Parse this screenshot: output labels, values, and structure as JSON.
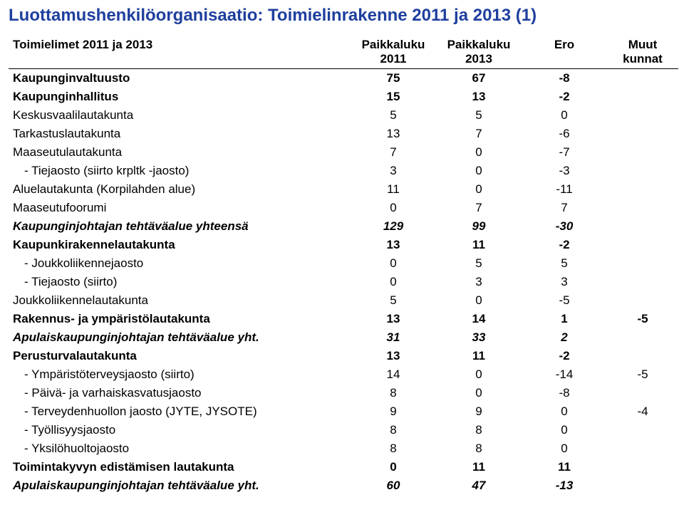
{
  "title": "Luottamushenkilöorganisaatio: Toimielinrakenne 2011 ja 2013 (1)",
  "columns": {
    "name": "Toimielimet 2011 ja 2013",
    "c1_l1": "Paikkaluku",
    "c1_l2": "2011",
    "c2_l1": "Paikkaluku",
    "c2_l2": "2013",
    "c3_l1": "Ero",
    "c4_l1": "Muut",
    "c4_l2": "kunnat"
  },
  "rows": [
    {
      "name": "Kaupunginvaltuusto",
      "v": [
        "75",
        "67",
        "-8",
        ""
      ],
      "style": "bold"
    },
    {
      "name": "Kaupunginhallitus",
      "v": [
        "15",
        "13",
        "-2",
        ""
      ],
      "style": "bold"
    },
    {
      "name": "Keskusvaalilautakunta",
      "v": [
        "5",
        "5",
        "0",
        ""
      ]
    },
    {
      "name": "Tarkastuslautakunta",
      "v": [
        "13",
        "7",
        "-6",
        ""
      ]
    },
    {
      "name": "Maaseutulautakunta",
      "v": [
        "7",
        "0",
        "-7",
        ""
      ]
    },
    {
      "name": "-   Tiejaosto (siirto krpltk -jaosto)",
      "v": [
        "3",
        "0",
        "-3",
        ""
      ],
      "indent": true
    },
    {
      "name": "Aluelautakunta (Korpilahden alue)",
      "v": [
        "11",
        "0",
        "-11",
        ""
      ]
    },
    {
      "name": "Maaseutufoorumi",
      "v": [
        "0",
        "7",
        "7",
        ""
      ]
    },
    {
      "name": "Kaupunginjohtajan tehtäväalue yhteensä",
      "v": [
        "129",
        "99",
        "-30",
        ""
      ],
      "style": "bold-italic"
    },
    {
      "name": "Kaupunkirakennelautakunta",
      "v": [
        "13",
        "11",
        "-2",
        ""
      ],
      "style": "bold"
    },
    {
      "name": "-   Joukkoliikennejaosto",
      "v": [
        "0",
        "5",
        "5",
        ""
      ],
      "indent": true
    },
    {
      "name": "-   Tiejaosto (siirto)",
      "v": [
        "0",
        "3",
        "3",
        ""
      ],
      "indent": true
    },
    {
      "name": "Joukkoliikennelautakunta",
      "v": [
        "5",
        "0",
        "-5",
        ""
      ]
    },
    {
      "name": "Rakennus- ja ympäristölautakunta",
      "v": [
        "13",
        "14",
        "1",
        "-5"
      ],
      "style": "bold"
    },
    {
      "name": "Apulaiskaupunginjohtajan tehtäväalue yht.",
      "v": [
        "31",
        "33",
        "2",
        ""
      ],
      "style": "bold-italic"
    },
    {
      "name": "Perusturvalautakunta",
      "v": [
        "13",
        "11",
        "-2",
        ""
      ],
      "style": "bold"
    },
    {
      "name": "-   Ympäristöterveysjaosto (siirto)",
      "v": [
        "14",
        "0",
        "-14",
        "-5"
      ],
      "indent": true
    },
    {
      "name": "-   Päivä- ja varhaiskasvatusjaosto",
      "v": [
        "8",
        "0",
        "-8",
        ""
      ],
      "indent": true
    },
    {
      "name": "-   Terveydenhuollon jaosto (JYTE, JYSOTE)",
      "v": [
        "9",
        "9",
        "0",
        "-4"
      ],
      "indent": true
    },
    {
      "name": "-   Työllisyysjaosto",
      "v": [
        "8",
        "8",
        "0",
        ""
      ],
      "indent": true
    },
    {
      "name": "-   Yksilöhuoltojaosto",
      "v": [
        "8",
        "8",
        "0",
        ""
      ],
      "indent": true
    },
    {
      "name": "Toimintakyvyn edistämisen lautakunta",
      "v": [
        "0",
        "11",
        "11",
        ""
      ],
      "style": "bold"
    },
    {
      "name": "Apulaiskaupunginjohtajan tehtäväalue yht.",
      "v": [
        "60",
        "47",
        "-13",
        ""
      ],
      "style": "bold-italic"
    }
  ]
}
